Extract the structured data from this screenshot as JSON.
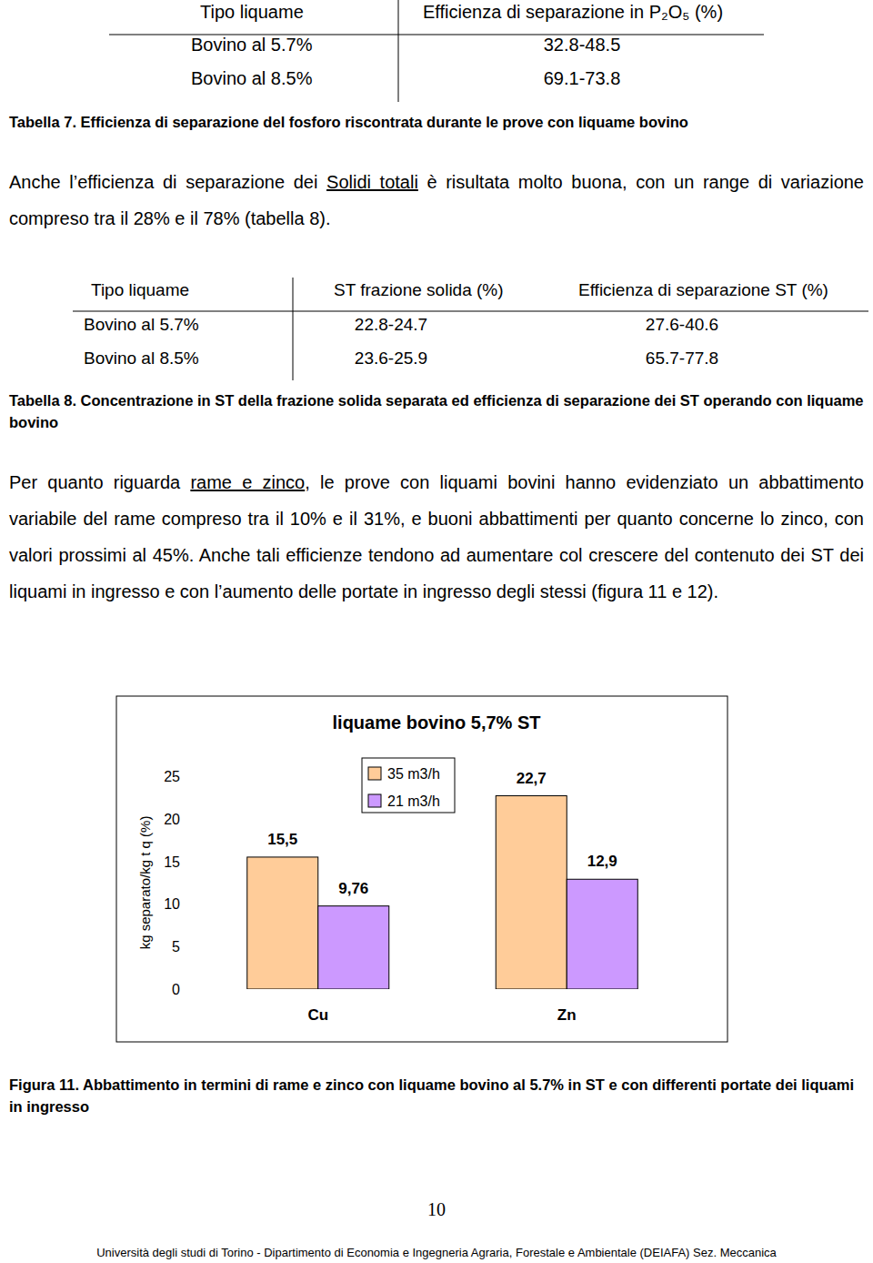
{
  "table_7": {
    "header": [
      "Tipo liquame",
      "Efficienza di separazione in P₂O₅ (%)"
    ],
    "rows": [
      [
        "Bovino al 5.7%",
        "32.8-48.5"
      ],
      [
        "Bovino al 8.5%",
        "69.1-73.8"
      ]
    ]
  },
  "caption_7": "Tabella 7. Efficienza di separazione del fosforo riscontrata durante le prove con liquame bovino",
  "paragraph_1": [
    "Anche l’efficienza di separazione dei ",
    "Solidi totali",
    " è risultata molto buona, con un  range di variazione compreso tra il 28% e il 78% (tabella 8)."
  ],
  "table_8": {
    "header": [
      "Tipo liquame",
      "ST frazione solida (%)",
      "Efficienza di separazione ST (%)"
    ],
    "rows": [
      [
        "Bovino al 5.7%",
        "22.8-24.7",
        "27.6-40.6"
      ],
      [
        "Bovino al 8.5%",
        "23.6-25.9",
        "65.7-77.8"
      ]
    ]
  },
  "caption_8": "Tabella 8. Concentrazione in ST della frazione solida separata ed efficienza di separazione dei ST operando con liquame bovino",
  "paragraph_2": [
    "Per quanto riguarda ",
    "rame e zinco",
    ", le prove con liquami bovini hanno evidenziato un abbattimento variabile del rame compreso tra il 10% e il 31%, e buoni abbattimenti per quanto concerne lo zinco, con valori prossimi al 45%. Anche tali efficienze tendono ad aumentare col crescere del contenuto dei ST dei liquami in ingresso e con l’aumento delle portate in ingresso degli stessi (figura 11 e 12)."
  ],
  "chart_data": {
    "type": "bar",
    "title": "liquame bovino 5,7% ST",
    "ylabel": "kg separato/kg t q (%)",
    "categories": [
      "Cu",
      "Zn"
    ],
    "series": [
      {
        "name": "35 m3/h",
        "color": "#ffcc99",
        "values": [
          15.5,
          22.7
        ],
        "value_labels": [
          "15,5",
          "22,7"
        ]
      },
      {
        "name": "21 m3/h",
        "color": "#cc99ff",
        "values": [
          9.76,
          12.9
        ],
        "value_labels": [
          "9,76",
          "12,9"
        ]
      }
    ],
    "ylim": [
      0,
      25
    ],
    "yticks": [
      0,
      5,
      10,
      15,
      20,
      25
    ],
    "grid": false,
    "legend": "top",
    "data_labels": true
  },
  "caption_11": "Figura 11. Abbattimento in termini di rame e zinco con liquame bovino al 5.7% in ST e con differenti portate dei liquami in ingresso",
  "page_number": "10",
  "footer": "Università degli studi di Torino - Dipartimento di Economia e Ingegneria Agraria, Forestale e Ambientale (DEIAFA) Sez. Meccanica"
}
